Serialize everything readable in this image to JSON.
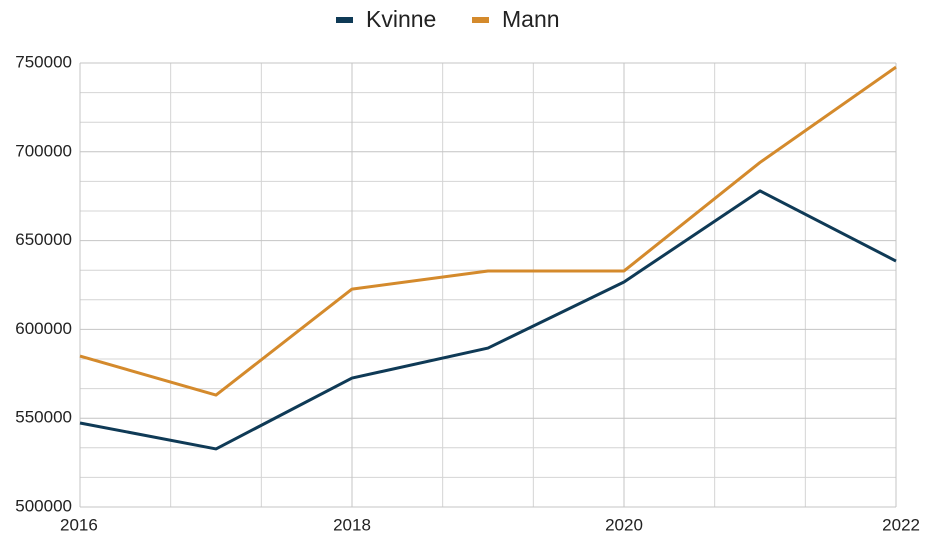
{
  "chart_data": {
    "type": "line",
    "x": [
      2016,
      2017,
      2018,
      2019,
      2020,
      2021,
      2022
    ],
    "series": [
      {
        "name": "Kvinne",
        "color": "#0f3a56",
        "values": [
          547300,
          532700,
          572600,
          589500,
          626700,
          678000,
          638500
        ]
      },
      {
        "name": "Mann",
        "color": "#d48a2c",
        "values": [
          585000,
          563000,
          622700,
          632900,
          632900,
          694000,
          747700
        ]
      }
    ],
    "xlim": [
      2016,
      2022
    ],
    "xticks": [
      2016,
      2018,
      2020,
      2022
    ],
    "ylim": [
      500000,
      750000
    ],
    "yticks": [
      500000,
      550000,
      600000,
      650000,
      700000,
      750000
    ],
    "grid": true,
    "minor_divisions": 3,
    "legend": "top"
  }
}
